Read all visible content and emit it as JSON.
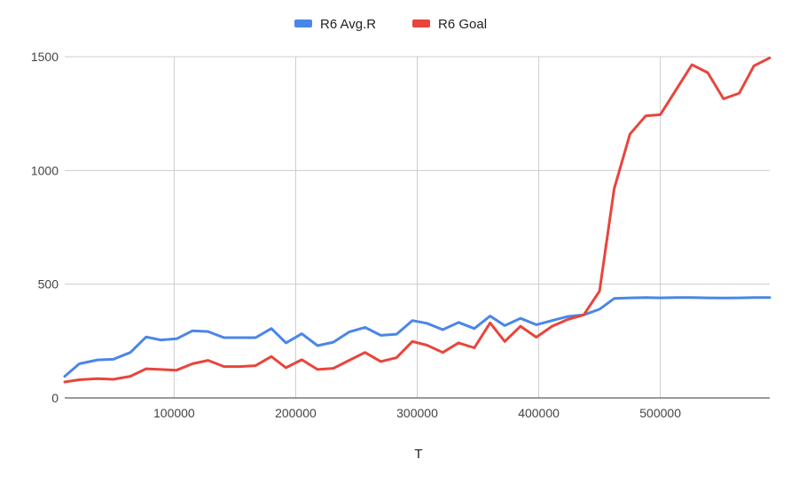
{
  "chart_data": {
    "type": "line",
    "title": "",
    "xlabel": "T",
    "ylabel": "",
    "xlim": [
      10000,
      590000
    ],
    "ylim": [
      0,
      1500
    ],
    "grid": true,
    "legend_position": "top",
    "x_ticks": [
      100000,
      200000,
      300000,
      400000,
      500000
    ],
    "x_tick_labels": [
      "100000",
      "200000",
      "300000",
      "400000",
      "500000"
    ],
    "y_ticks": [
      0,
      500,
      1000,
      1500
    ],
    "y_tick_labels": [
      "0",
      "500",
      "1000",
      "1500"
    ],
    "x": [
      10000,
      22000,
      37000,
      50000,
      64000,
      77000,
      89000,
      102000,
      115000,
      128000,
      141000,
      154000,
      167000,
      180000,
      192000,
      205000,
      218000,
      231000,
      244000,
      257000,
      270000,
      283000,
      296000,
      308000,
      321000,
      334000,
      347000,
      360000,
      372000,
      385000,
      398000,
      411000,
      424000,
      437000,
      450000,
      462000,
      475000,
      488000,
      500000,
      513000,
      526000,
      539000,
      552000,
      565000,
      577000,
      590000
    ],
    "series": [
      {
        "name": "R6 Avg.R",
        "color": "#4a86e8",
        "values": [
          95,
          150,
          167,
          170,
          200,
          268,
          255,
          260,
          295,
          292,
          265,
          265,
          265,
          305,
          242,
          282,
          230,
          245,
          290,
          310,
          275,
          280,
          340,
          328,
          300,
          332,
          305,
          360,
          318,
          350,
          322,
          340,
          358,
          365,
          390,
          437,
          440,
          441,
          440,
          441,
          441,
          440,
          439,
          440,
          441,
          441
        ]
      },
      {
        "name": "R6 Goal",
        "color": "#e8453c",
        "values": [
          70,
          80,
          85,
          82,
          95,
          128,
          125,
          122,
          150,
          165,
          138,
          138,
          142,
          182,
          133,
          168,
          125,
          130,
          165,
          200,
          160,
          177,
          248,
          232,
          200,
          242,
          220,
          330,
          248,
          315,
          267,
          315,
          345,
          365,
          470,
          920,
          1160,
          1240,
          1245,
          1355,
          1465,
          1430,
          1315,
          1340,
          1460,
          1495
        ]
      }
    ]
  }
}
